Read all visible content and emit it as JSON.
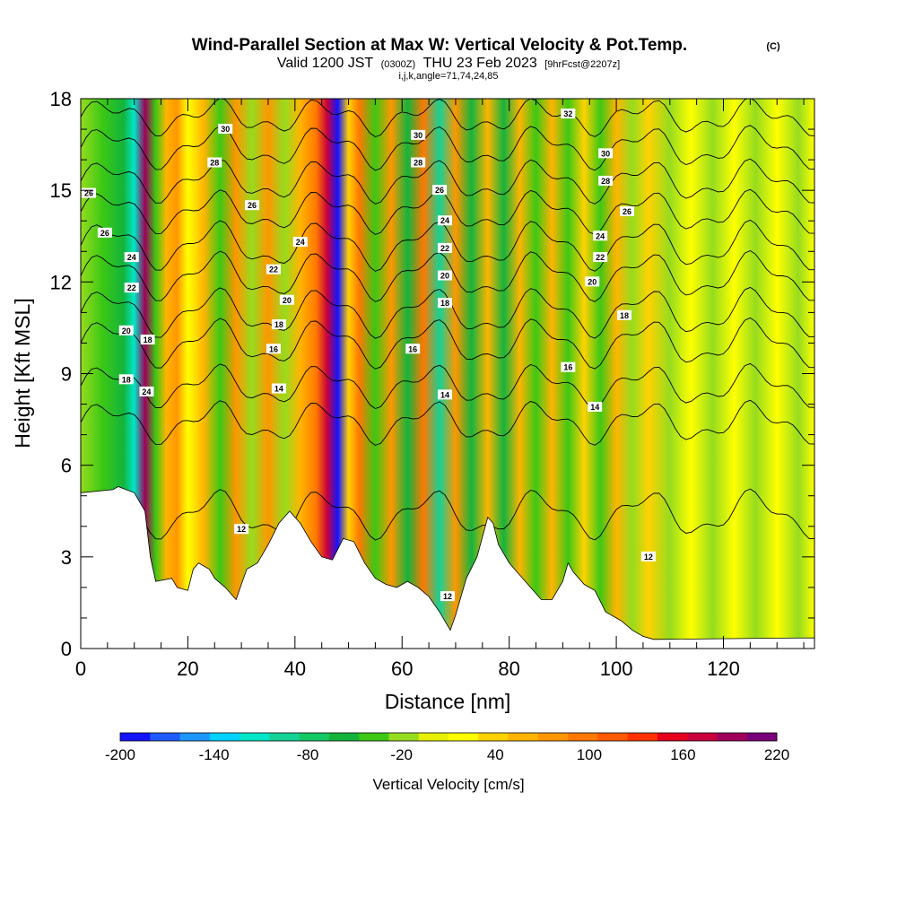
{
  "chart_data": {
    "type": "heatmap",
    "title": "Wind-Parallel Section at Max W: Vertical Velocity & Pot.Temp.",
    "title_tag": "(C)",
    "subtitle_prefix": "Valid 1200 JST",
    "subtitle_zulu": "(0300Z)",
    "subtitle_date": "THU 23 Feb 2023",
    "subtitle_fcst": "[9hrFcst@2207z]",
    "info_line": "i,j,k,angle=71,74,24,85",
    "xlabel": "Distance [nm]",
    "ylabel": "Height [Kft MSL]",
    "xlim": [
      0,
      137
    ],
    "ylim": [
      0,
      18
    ],
    "x_ticks": [
      "0",
      "20",
      "40",
      "60",
      "80",
      "100",
      "120"
    ],
    "y_ticks": [
      "0",
      "3",
      "6",
      "9",
      "12",
      "15",
      "18"
    ],
    "colorbar": {
      "label": "Vertical Velocity [cm/s]",
      "min": -200,
      "max": 220,
      "tick_labels": [
        "-200",
        "-140",
        "-80",
        "-20",
        "40",
        "100",
        "160",
        "220"
      ],
      "colors": [
        "#1414ff",
        "#1e5aff",
        "#1e96ff",
        "#00d2ff",
        "#00e6c8",
        "#14d296",
        "#14c864",
        "#14b43c",
        "#3cc814",
        "#96dc1e",
        "#e6f000",
        "#ffff00",
        "#ffd200",
        "#ffb400",
        "#ff9600",
        "#ff7800",
        "#ff5a00",
        "#ff3200",
        "#e6001e",
        "#c8003c",
        "#a0005a",
        "#780078"
      ]
    },
    "w_profile": [
      {
        "x": 0,
        "w": -10
      },
      {
        "x": 4,
        "w": -30
      },
      {
        "x": 8,
        "w": -60
      },
      {
        "x": 10,
        "w": -120
      },
      {
        "x": 12,
        "w": 190
      },
      {
        "x": 14,
        "w": -40
      },
      {
        "x": 16,
        "w": 60
      },
      {
        "x": 18,
        "w": 80
      },
      {
        "x": 20,
        "w": 20
      },
      {
        "x": 23,
        "w": 60
      },
      {
        "x": 26,
        "w": -40
      },
      {
        "x": 29,
        "w": 80
      },
      {
        "x": 32,
        "w": -20
      },
      {
        "x": 35,
        "w": 70
      },
      {
        "x": 38,
        "w": -20
      },
      {
        "x": 41,
        "w": 60
      },
      {
        "x": 44,
        "w": 100
      },
      {
        "x": 46,
        "w": 170
      },
      {
        "x": 48,
        "w": -200
      },
      {
        "x": 50,
        "w": 30
      },
      {
        "x": 52,
        "w": 90
      },
      {
        "x": 55,
        "w": -40
      },
      {
        "x": 58,
        "w": 80
      },
      {
        "x": 61,
        "w": -60
      },
      {
        "x": 64,
        "w": 90
      },
      {
        "x": 67,
        "w": -90
      },
      {
        "x": 70,
        "w": 70
      },
      {
        "x": 73,
        "w": -50
      },
      {
        "x": 76,
        "w": 60
      },
      {
        "x": 79,
        "w": -60
      },
      {
        "x": 82,
        "w": 60
      },
      {
        "x": 85,
        "w": -40
      },
      {
        "x": 88,
        "w": 50
      },
      {
        "x": 91,
        "w": -40
      },
      {
        "x": 94,
        "w": 40
      },
      {
        "x": 97,
        "w": -40
      },
      {
        "x": 100,
        "w": 50
      },
      {
        "x": 103,
        "w": -20
      },
      {
        "x": 106,
        "w": 30
      },
      {
        "x": 110,
        "w": -20
      },
      {
        "x": 114,
        "w": 20
      },
      {
        "x": 118,
        "w": -10
      },
      {
        "x": 122,
        "w": 20
      },
      {
        "x": 126,
        "w": -10
      },
      {
        "x": 130,
        "w": 20
      },
      {
        "x": 134,
        "w": -10
      },
      {
        "x": 137,
        "w": 10
      }
    ],
    "terrain": [
      [
        0,
        5.1
      ],
      [
        6,
        5.2
      ],
      [
        7,
        5.3
      ],
      [
        10,
        5.1
      ],
      [
        12,
        4.5
      ],
      [
        13,
        3.0
      ],
      [
        14,
        2.2
      ],
      [
        17,
        2.3
      ],
      [
        18,
        2.0
      ],
      [
        20,
        1.9
      ],
      [
        21,
        2.6
      ],
      [
        22,
        2.8
      ],
      [
        24,
        2.6
      ],
      [
        25,
        2.3
      ],
      [
        27,
        2.0
      ],
      [
        29,
        1.6
      ],
      [
        30,
        2.1
      ],
      [
        31,
        2.6
      ],
      [
        33,
        2.8
      ],
      [
        35,
        3.4
      ],
      [
        37,
        4.1
      ],
      [
        39,
        4.5
      ],
      [
        41,
        4.1
      ],
      [
        43,
        3.5
      ],
      [
        45,
        3.0
      ],
      [
        47,
        2.9
      ],
      [
        49,
        3.6
      ],
      [
        51,
        3.5
      ],
      [
        53,
        2.8
      ],
      [
        55,
        2.3
      ],
      [
        57,
        2.1
      ],
      [
        59,
        2.0
      ],
      [
        61,
        2.2
      ],
      [
        63,
        2.0
      ],
      [
        65,
        1.7
      ],
      [
        67,
        1.2
      ],
      [
        68,
        0.9
      ],
      [
        69,
        0.6
      ],
      [
        70,
        1.1
      ],
      [
        72,
        2.3
      ],
      [
        74,
        3.0
      ],
      [
        76,
        4.3
      ],
      [
        77,
        4.1
      ],
      [
        78,
        3.4
      ],
      [
        80,
        2.8
      ],
      [
        82,
        2.4
      ],
      [
        84,
        2.0
      ],
      [
        86,
        1.6
      ],
      [
        88,
        1.6
      ],
      [
        90,
        2.2
      ],
      [
        91,
        2.8
      ],
      [
        92,
        2.5
      ],
      [
        94,
        2.1
      ],
      [
        95,
        2.0
      ],
      [
        96,
        1.9
      ],
      [
        98,
        1.2
      ],
      [
        100,
        1.0
      ],
      [
        101,
        0.9
      ],
      [
        103,
        0.6
      ],
      [
        105,
        0.4
      ],
      [
        107,
        0.3
      ],
      [
        137,
        0.35
      ]
    ],
    "theta_contours": [
      {
        "value": "12",
        "y0": 4.4,
        "amp": 0.6
      },
      {
        "value": "14",
        "y0": 7.4,
        "amp": 0.5
      },
      {
        "value": "16",
        "y0": 8.6,
        "amp": 0.5
      },
      {
        "value": "18",
        "y0": 10.0,
        "amp": 0.6
      },
      {
        "value": "20",
        "y0": 11.0,
        "amp": 0.6
      },
      {
        "value": "22",
        "y0": 12.2,
        "amp": 0.6
      },
      {
        "value": "24",
        "y0": 13.2,
        "amp": 0.6
      },
      {
        "value": "26",
        "y0": 14.3,
        "amp": 0.5
      },
      {
        "value": "28",
        "y0": 15.3,
        "amp": 0.5
      },
      {
        "value": "30",
        "y0": 16.4,
        "amp": 0.5
      },
      {
        "value": "32",
        "y0": 17.4,
        "amp": 0.4
      }
    ],
    "contour_labels": [
      {
        "value": "26",
        "x": 1.5,
        "y": 14.9
      },
      {
        "value": "26",
        "x": 4.5,
        "y": 13.6
      },
      {
        "value": "24",
        "x": 9.5,
        "y": 12.8
      },
      {
        "value": "22",
        "x": 9.5,
        "y": 11.8
      },
      {
        "value": "20",
        "x": 8.5,
        "y": 10.4
      },
      {
        "value": "18",
        "x": 12.5,
        "y": 10.1
      },
      {
        "value": "18",
        "x": 8.5,
        "y": 8.8
      },
      {
        "value": "24",
        "x": 12.3,
        "y": 8.4
      },
      {
        "value": "30",
        "x": 27.0,
        "y": 17.0
      },
      {
        "value": "28",
        "x": 25.0,
        "y": 15.9
      },
      {
        "value": "26",
        "x": 32.0,
        "y": 14.5
      },
      {
        "value": "24",
        "x": 41.0,
        "y": 13.3
      },
      {
        "value": "22",
        "x": 36.0,
        "y": 12.4
      },
      {
        "value": "20",
        "x": 38.5,
        "y": 11.4
      },
      {
        "value": "18",
        "x": 37.0,
        "y": 10.6
      },
      {
        "value": "16",
        "x": 36.0,
        "y": 9.8
      },
      {
        "value": "14",
        "x": 37.0,
        "y": 8.5
      },
      {
        "value": "12",
        "x": 30.0,
        "y": 3.9
      },
      {
        "value": "30",
        "x": 63.0,
        "y": 16.8
      },
      {
        "value": "28",
        "x": 63.0,
        "y": 15.9
      },
      {
        "value": "26",
        "x": 67.0,
        "y": 15.0
      },
      {
        "value": "24",
        "x": 68.0,
        "y": 14.0
      },
      {
        "value": "22",
        "x": 68.0,
        "y": 13.1
      },
      {
        "value": "20",
        "x": 68.0,
        "y": 12.2
      },
      {
        "value": "18",
        "x": 68.0,
        "y": 11.3
      },
      {
        "value": "16",
        "x": 62.0,
        "y": 9.8
      },
      {
        "value": "14",
        "x": 68.0,
        "y": 8.3
      },
      {
        "value": "12",
        "x": 68.5,
        "y": 1.7
      },
      {
        "value": "32",
        "x": 91.0,
        "y": 17.5
      },
      {
        "value": "30",
        "x": 98.0,
        "y": 16.2
      },
      {
        "value": "28",
        "x": 98.0,
        "y": 15.3
      },
      {
        "value": "26",
        "x": 102.0,
        "y": 14.3
      },
      {
        "value": "24",
        "x": 97.0,
        "y": 13.5
      },
      {
        "value": "22",
        "x": 97.0,
        "y": 12.8
      },
      {
        "value": "20",
        "x": 95.5,
        "y": 12.0
      },
      {
        "value": "18",
        "x": 101.5,
        "y": 10.9
      },
      {
        "value": "16",
        "x": 91.0,
        "y": 9.2
      },
      {
        "value": "14",
        "x": 96.0,
        "y": 7.9
      },
      {
        "value": "12",
        "x": 106.0,
        "y": 3.0
      }
    ]
  }
}
